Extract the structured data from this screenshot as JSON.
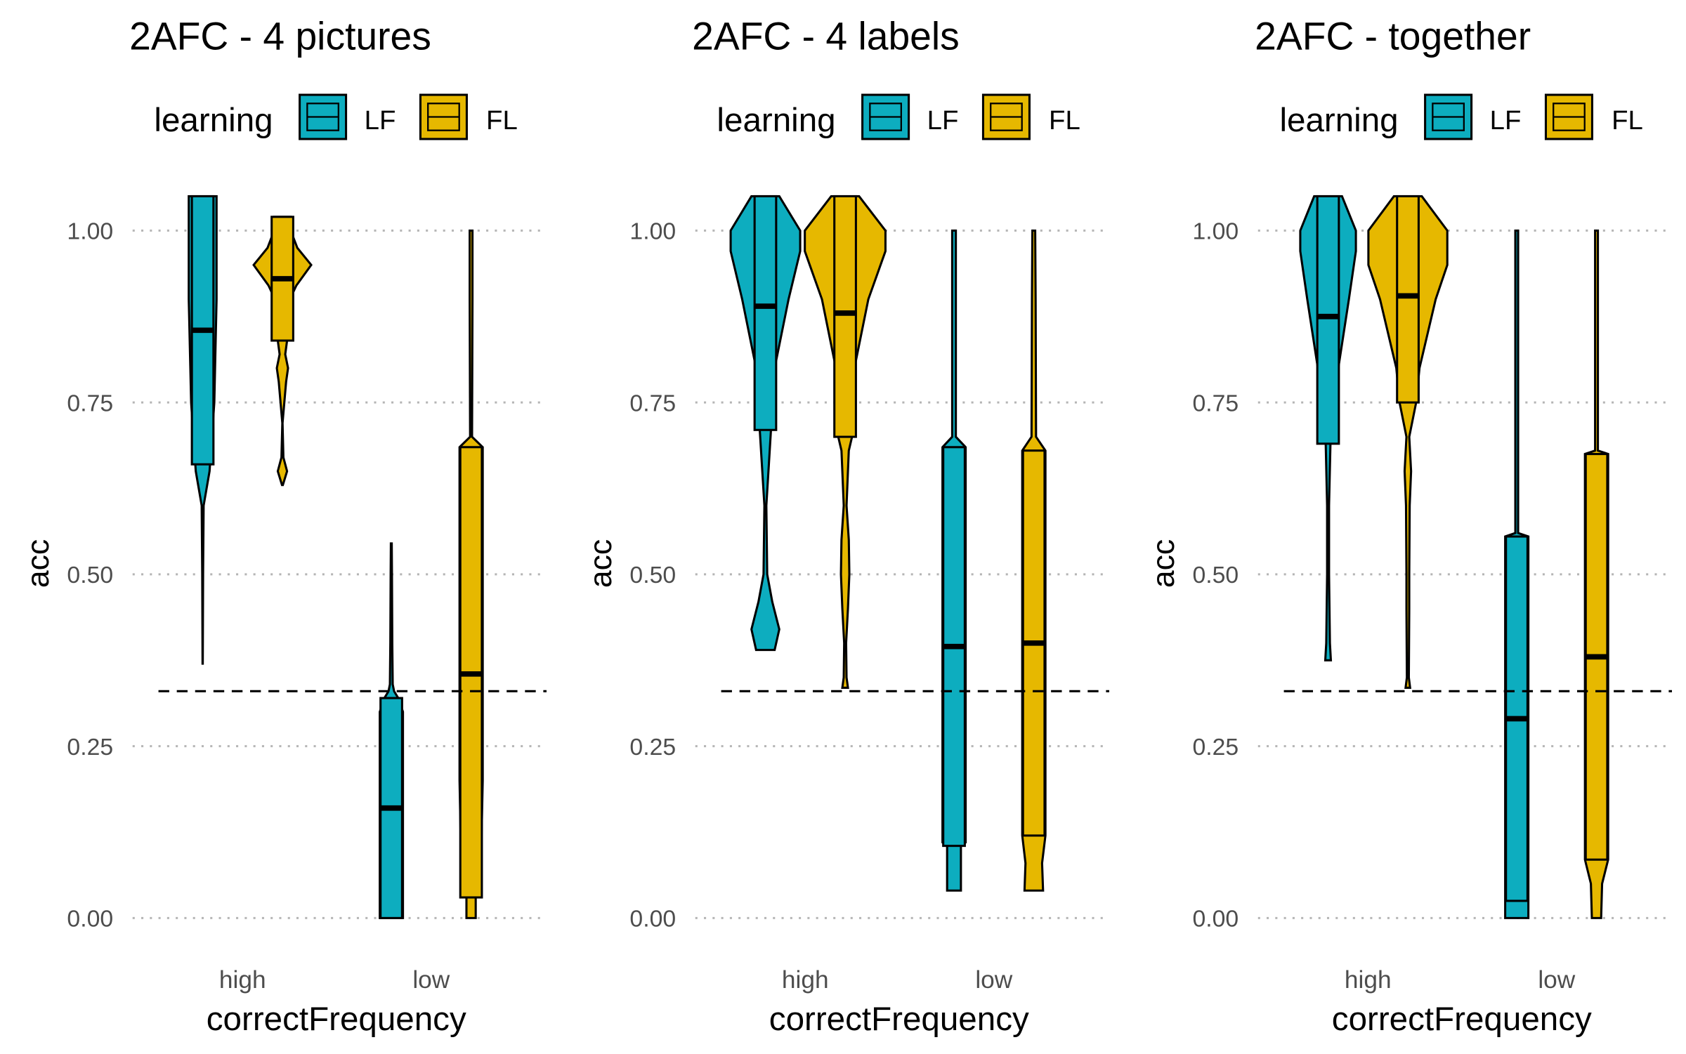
{
  "chart_data": [
    {
      "type": "violin",
      "title": "2AFC - 4 pictures",
      "xlabel": "correctFrequency",
      "ylabel": "acc",
      "categories": [
        "high",
        "low"
      ],
      "ylim": [
        0,
        1
      ],
      "yticks": [
        0,
        0.25,
        0.5,
        0.75,
        1
      ],
      "ytick_labels": [
        "0.00",
        "0.25",
        "0.50",
        "0.75",
        "1.00"
      ],
      "grid": "horizontal dotted",
      "reference_line": 0.33,
      "legend": {
        "title": "learning",
        "position": "top",
        "entries": [
          "LF",
          "FL"
        ]
      },
      "series": [
        {
          "name": "LF",
          "color": "#0DADBF",
          "values": [
            {
              "category": "high",
              "min": 0.37,
              "q1": 0.66,
              "median": 0.855,
              "q3": 1.05,
              "max": 1.05,
              "profile": [
                [
                  0.37,
                  0.003
                ],
                [
                  0.5,
                  0.01
                ],
                [
                  0.6,
                  0.02
                ],
                [
                  0.65,
                  0.15
                ],
                [
                  0.75,
                  0.25
                ],
                [
                  0.9,
                  0.3
                ],
                [
                  1.05,
                  0.3
                ]
              ]
            },
            {
              "category": "low",
              "min": 0.0,
              "q1": 0.0,
              "median": 0.16,
              "q3": 0.32,
              "max": 0.545,
              "profile": [
                [
                  0.0,
                  0.25
                ],
                [
                  0.1,
                  0.25
                ],
                [
                  0.2,
                  0.25
                ],
                [
                  0.3,
                  0.25
                ],
                [
                  0.32,
                  0.15
                ],
                [
                  0.33,
                  0.06
                ],
                [
                  0.34,
                  0.03
                ],
                [
                  0.4,
                  0.02
                ],
                [
                  0.5,
                  0.015
                ],
                [
                  0.545,
                  0.01
                ]
              ]
            }
          ]
        },
        {
          "name": "FL",
          "color": "#E6B800",
          "values": [
            {
              "category": "high",
              "min": 0.63,
              "q1": 0.84,
              "median": 0.93,
              "q3": 1.02,
              "max": 1.02,
              "profile": [
                [
                  0.63,
                  0.01
                ],
                [
                  0.65,
                  0.1
                ],
                [
                  0.67,
                  0.02
                ],
                [
                  0.72,
                  0.003
                ],
                [
                  0.78,
                  0.08
                ],
                [
                  0.8,
                  0.12
                ],
                [
                  0.82,
                  0.06
                ],
                [
                  0.84,
                  0.1
                ],
                [
                  0.9,
                  0.16
                ],
                [
                  0.92,
                  0.3
                ],
                [
                  0.95,
                  0.62
                ],
                [
                  0.975,
                  0.32
                ],
                [
                  1.0,
                  0.18
                ],
                [
                  1.02,
                  0.18
                ]
              ]
            },
            {
              "category": "low",
              "min": 0.0,
              "q1": 0.03,
              "median": 0.355,
              "q3": 0.685,
              "max": 1.0,
              "profile": [
                [
                  0.0,
                  0.1
                ],
                [
                  0.03,
                  0.1
                ],
                [
                  0.035,
                  0.2
                ],
                [
                  0.2,
                  0.25
                ],
                [
                  0.4,
                  0.25
                ],
                [
                  0.6,
                  0.25
                ],
                [
                  0.685,
                  0.25
                ],
                [
                  0.7,
                  0.02
                ],
                [
                  0.9,
                  0.03
                ],
                [
                  1.0,
                  0.03
                ]
              ]
            }
          ]
        }
      ]
    },
    {
      "type": "violin",
      "title": "2AFC - 4 labels",
      "xlabel": "correctFrequency",
      "ylabel": "acc",
      "categories": [
        "high",
        "low"
      ],
      "ylim": [
        0,
        1
      ],
      "yticks": [
        0,
        0.25,
        0.5,
        0.75,
        1
      ],
      "ytick_labels": [
        "0.00",
        "0.25",
        "0.50",
        "0.75",
        "1.00"
      ],
      "grid": "horizontal dotted",
      "reference_line": 0.33,
      "legend": {
        "title": "learning",
        "position": "top",
        "entries": [
          "LF",
          "FL"
        ]
      },
      "series": [
        {
          "name": "LF",
          "color": "#0DADBF",
          "values": [
            {
              "category": "high",
              "min": 0.39,
              "q1": 0.71,
              "median": 0.89,
              "q3": 1.05,
              "max": 1.05,
              "profile": [
                [
                  0.39,
                  0.2
                ],
                [
                  0.42,
                  0.3
                ],
                [
                  0.46,
                  0.15
                ],
                [
                  0.5,
                  0.04
                ],
                [
                  0.6,
                  0.02
                ],
                [
                  0.71,
                  0.12
                ],
                [
                  0.8,
                  0.2
                ],
                [
                  0.9,
                  0.5
                ],
                [
                  0.97,
                  0.75
                ],
                [
                  1.0,
                  0.75
                ],
                [
                  1.05,
                  0.3
                ]
              ]
            },
            {
              "category": "low",
              "min": 0.04,
              "q1": 0.105,
              "median": 0.395,
              "q3": 0.685,
              "max": 1.0,
              "profile": [
                [
                  0.04,
                  0.15
                ],
                [
                  0.105,
                  0.15
                ],
                [
                  0.11,
                  0.25
                ],
                [
                  0.3,
                  0.25
                ],
                [
                  0.5,
                  0.25
                ],
                [
                  0.685,
                  0.25
                ],
                [
                  0.7,
                  0.04
                ],
                [
                  0.9,
                  0.04
                ],
                [
                  1.0,
                  0.04
                ]
              ]
            }
          ]
        },
        {
          "name": "FL",
          "color": "#E6B800",
          "values": [
            {
              "category": "high",
              "min": 0.335,
              "q1": 0.7,
              "median": 0.88,
              "q3": 1.05,
              "max": 1.05,
              "profile": [
                [
                  0.335,
                  0.06
                ],
                [
                  0.35,
                  0.03
                ],
                [
                  0.4,
                  0.02
                ],
                [
                  0.45,
                  0.06
                ],
                [
                  0.5,
                  0.09
                ],
                [
                  0.55,
                  0.08
                ],
                [
                  0.6,
                  0.03
                ],
                [
                  0.65,
                  0.06
                ],
                [
                  0.68,
                  0.08
                ],
                [
                  0.7,
                  0.15
                ],
                [
                  0.8,
                  0.2
                ],
                [
                  0.9,
                  0.5
                ],
                [
                  0.97,
                  0.87
                ],
                [
                  1.0,
                  0.87
                ],
                [
                  1.05,
                  0.3
                ]
              ]
            },
            {
              "category": "low",
              "min": 0.04,
              "q1": 0.12,
              "median": 0.4,
              "q3": 0.68,
              "max": 1.0,
              "profile": [
                [
                  0.04,
                  0.2
                ],
                [
                  0.08,
                  0.18
                ],
                [
                  0.12,
                  0.25
                ],
                [
                  0.3,
                  0.25
                ],
                [
                  0.5,
                  0.25
                ],
                [
                  0.68,
                  0.25
                ],
                [
                  0.7,
                  0.05
                ],
                [
                  0.9,
                  0.04
                ],
                [
                  1.0,
                  0.03
                ]
              ]
            }
          ]
        }
      ]
    },
    {
      "type": "violin",
      "title": "2AFC - together",
      "xlabel": "correctFrequency",
      "ylabel": "acc",
      "categories": [
        "high",
        "low"
      ],
      "ylim": [
        0,
        1
      ],
      "yticks": [
        0,
        0.25,
        0.5,
        0.75,
        1
      ],
      "ytick_labels": [
        "0.00",
        "0.25",
        "0.50",
        "0.75",
        "1.00"
      ],
      "grid": "horizontal dotted",
      "reference_line": 0.33,
      "legend": {
        "title": "learning",
        "position": "top",
        "entries": [
          "LF",
          "FL"
        ]
      },
      "series": [
        {
          "name": "LF",
          "color": "#0DADBF",
          "values": [
            {
              "category": "high",
              "min": 0.375,
              "q1": 0.69,
              "median": 0.875,
              "q3": 1.05,
              "max": 1.05,
              "profile": [
                [
                  0.375,
                  0.06
                ],
                [
                  0.4,
                  0.04
                ],
                [
                  0.5,
                  0.02
                ],
                [
                  0.6,
                  0.02
                ],
                [
                  0.69,
                  0.05
                ],
                [
                  0.7,
                  0.2
                ],
                [
                  0.8,
                  0.22
                ],
                [
                  0.9,
                  0.45
                ],
                [
                  0.97,
                  0.6
                ],
                [
                  1.0,
                  0.6
                ],
                [
                  1.05,
                  0.3
                ]
              ]
            },
            {
              "category": "low",
              "min": 0.0,
              "q1": 0.025,
              "median": 0.29,
              "q3": 0.555,
              "max": 1.0,
              "profile": [
                [
                  0.0,
                  0.25
                ],
                [
                  0.025,
                  0.25
                ],
                [
                  0.2,
                  0.25
                ],
                [
                  0.4,
                  0.25
                ],
                [
                  0.555,
                  0.25
                ],
                [
                  0.56,
                  0.03
                ],
                [
                  0.8,
                  0.03
                ],
                [
                  1.0,
                  0.03
                ]
              ]
            }
          ]
        },
        {
          "name": "FL",
          "color": "#E6B800",
          "values": [
            {
              "category": "high",
              "min": 0.335,
              "q1": 0.75,
              "median": 0.905,
              "q3": 1.05,
              "max": 1.05,
              "profile": [
                [
                  0.335,
                  0.05
                ],
                [
                  0.35,
                  0.02
                ],
                [
                  0.45,
                  0.03
                ],
                [
                  0.5,
                  0.03
                ],
                [
                  0.6,
                  0.04
                ],
                [
                  0.65,
                  0.07
                ],
                [
                  0.7,
                  0.03
                ],
                [
                  0.75,
                  0.18
                ],
                [
                  0.8,
                  0.25
                ],
                [
                  0.9,
                  0.6
                ],
                [
                  0.95,
                  0.85
                ],
                [
                  1.0,
                  0.85
                ],
                [
                  1.05,
                  0.3
                ]
              ]
            },
            {
              "category": "low",
              "min": 0.0,
              "q1": 0.085,
              "median": 0.38,
              "q3": 0.675,
              "max": 1.0,
              "profile": [
                [
                  0.0,
                  0.1
                ],
                [
                  0.05,
                  0.12
                ],
                [
                  0.085,
                  0.25
                ],
                [
                  0.3,
                  0.25
                ],
                [
                  0.5,
                  0.25
                ],
                [
                  0.675,
                  0.25
                ],
                [
                  0.68,
                  0.03
                ],
                [
                  0.8,
                  0.03
                ],
                [
                  1.0,
                  0.03
                ]
              ]
            }
          ]
        }
      ]
    }
  ]
}
